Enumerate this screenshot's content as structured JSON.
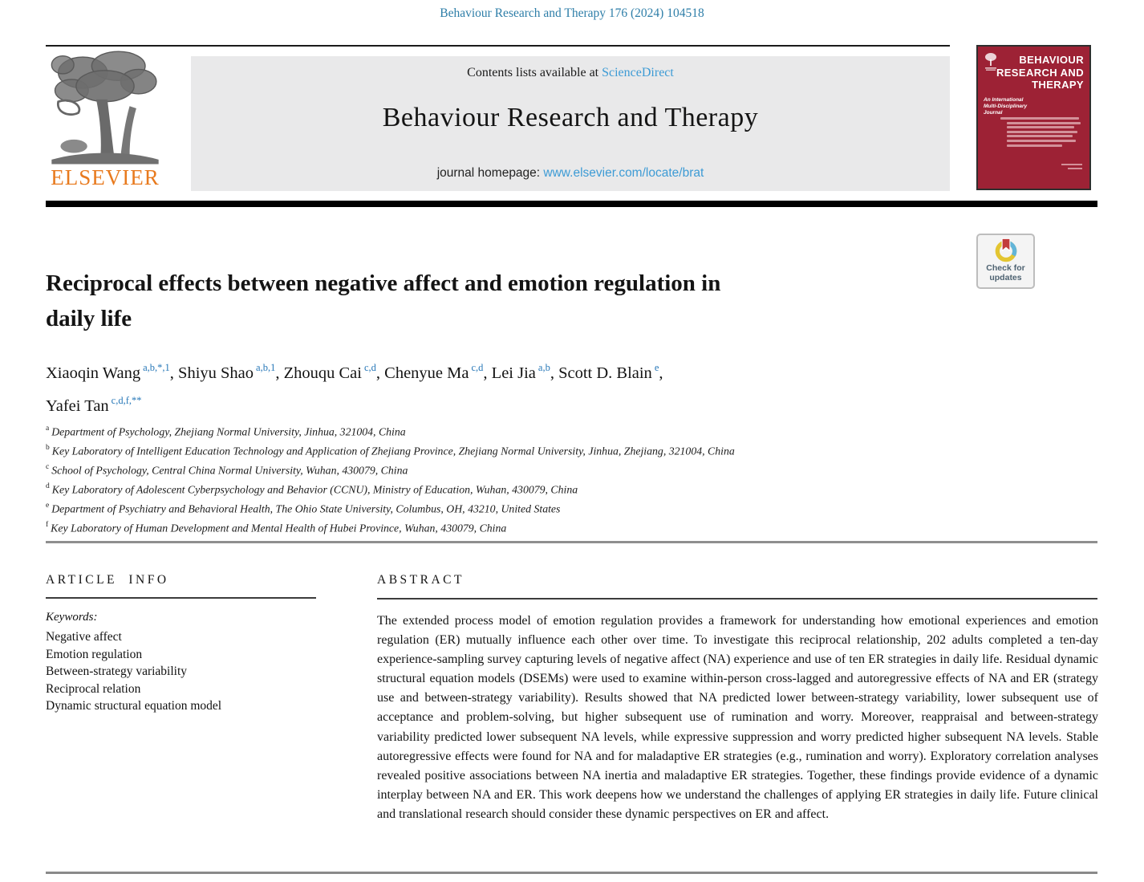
{
  "page": {
    "citation": "Behaviour Research and Therapy 176 (2024) 104518"
  },
  "masthead": {
    "contents_text": "Contents lists available at ",
    "sciencedirect_link": "ScienceDirect",
    "journal_title": "Behaviour Research and Therapy",
    "homepage_label": "journal homepage: ",
    "homepage_url": "www.elsevier.com/locate/brat",
    "publisher_wordmark": "ELSEVIER"
  },
  "cover": {
    "title_line1": "BEHAVIOUR",
    "title_line2": "RESEARCH AND",
    "title_line3": "THERAPY",
    "subtitle": "An International Multi-Disciplinary Journal"
  },
  "badge": {
    "line1": "Check for",
    "line2": "updates"
  },
  "article": {
    "title_line1": "Reciprocal effects between negative affect and emotion regulation in",
    "title_line2": "daily life",
    "authors_line1": [
      {
        "name": "Xiaoqin Wang",
        "sup": "a,b,*,1"
      },
      {
        "name": "Shiyu Shao",
        "sup": "a,b,1"
      },
      {
        "name": "Zhouqu Cai",
        "sup": "c,d"
      },
      {
        "name": "Chenyue Ma",
        "sup": "c,d"
      },
      {
        "name": "Lei Jia",
        "sup": "a,b"
      },
      {
        "name": "Scott D. Blain",
        "sup": "e"
      }
    ],
    "authors_line2": [
      {
        "name": "Yafei Tan",
        "sup": "c,d,f,**"
      }
    ],
    "affiliations": [
      {
        "sup": "a",
        "text": "Department of Psychology, Zhejiang Normal University, Jinhua, 321004, China"
      },
      {
        "sup": "b",
        "text": "Key Laboratory of Intelligent Education Technology and Application of Zhejiang Province, Zhejiang Normal University, Jinhua, Zhejiang, 321004, China"
      },
      {
        "sup": "c",
        "text": "School of Psychology, Central China Normal University, Wuhan, 430079, China"
      },
      {
        "sup": "d",
        "text": "Key Laboratory of Adolescent Cyberpsychology and Behavior (CCNU), Ministry of Education, Wuhan, 430079, China"
      },
      {
        "sup": "e",
        "text": "Department of Psychiatry and Behavioral Health, The Ohio State University, Columbus, OH, 43210, United States"
      },
      {
        "sup": "f",
        "text": "Key Laboratory of Human Development and Mental Health of Hubei Province, Wuhan, 430079, China"
      }
    ]
  },
  "article_info": {
    "heading": "ARTICLE INFO",
    "keywords_label": "Keywords:",
    "keywords": [
      "Negative affect",
      "Emotion regulation",
      "Between-strategy variability",
      "Reciprocal relation",
      "Dynamic structural equation model"
    ]
  },
  "abstract": {
    "heading": "ABSTRACT",
    "text": "The extended process model of emotion regulation provides a framework for understanding how emotional experiences and emotion regulation (ER) mutually influence each other over time. To investigate this reciprocal relationship, 202 adults completed a ten-day experience-sampling survey capturing levels of negative affect (NA) experience and use of ten ER strategies in daily life. Residual dynamic structural equation models (DSEMs) were used to examine within-person cross-lagged and autoregressive effects of NA and ER (strategy use and between-strategy variability). Results showed that NA predicted lower between-strategy variability, lower subsequent use of acceptance and problem-solving, but higher subsequent use of rumination and worry. Moreover, reappraisal and between-strategy variability predicted lower subsequent NA levels, while expressive suppression and worry predicted higher subsequent NA levels. Stable autoregressive effects were found for NA and for maladaptive ER strategies (e.g., rumination and worry). Exploratory correlation analyses revealed positive associations between NA inertia and maladaptive ER strategies. Together, these findings provide evidence of a dynamic interplay between NA and ER. This work deepens how we understand the challenges of applying ER strategies in daily life. Future clinical and translational research should consider these dynamic perspectives on ER and affect."
  },
  "colors": {
    "citation_blue": "#2E7EA8",
    "link_blue": "#3D9BD5",
    "superscript_blue": "#2878B8",
    "elsevier_orange": "#E87A1E",
    "cover_red": "#9D2235",
    "masthead_gray": "#E9E9EA"
  }
}
